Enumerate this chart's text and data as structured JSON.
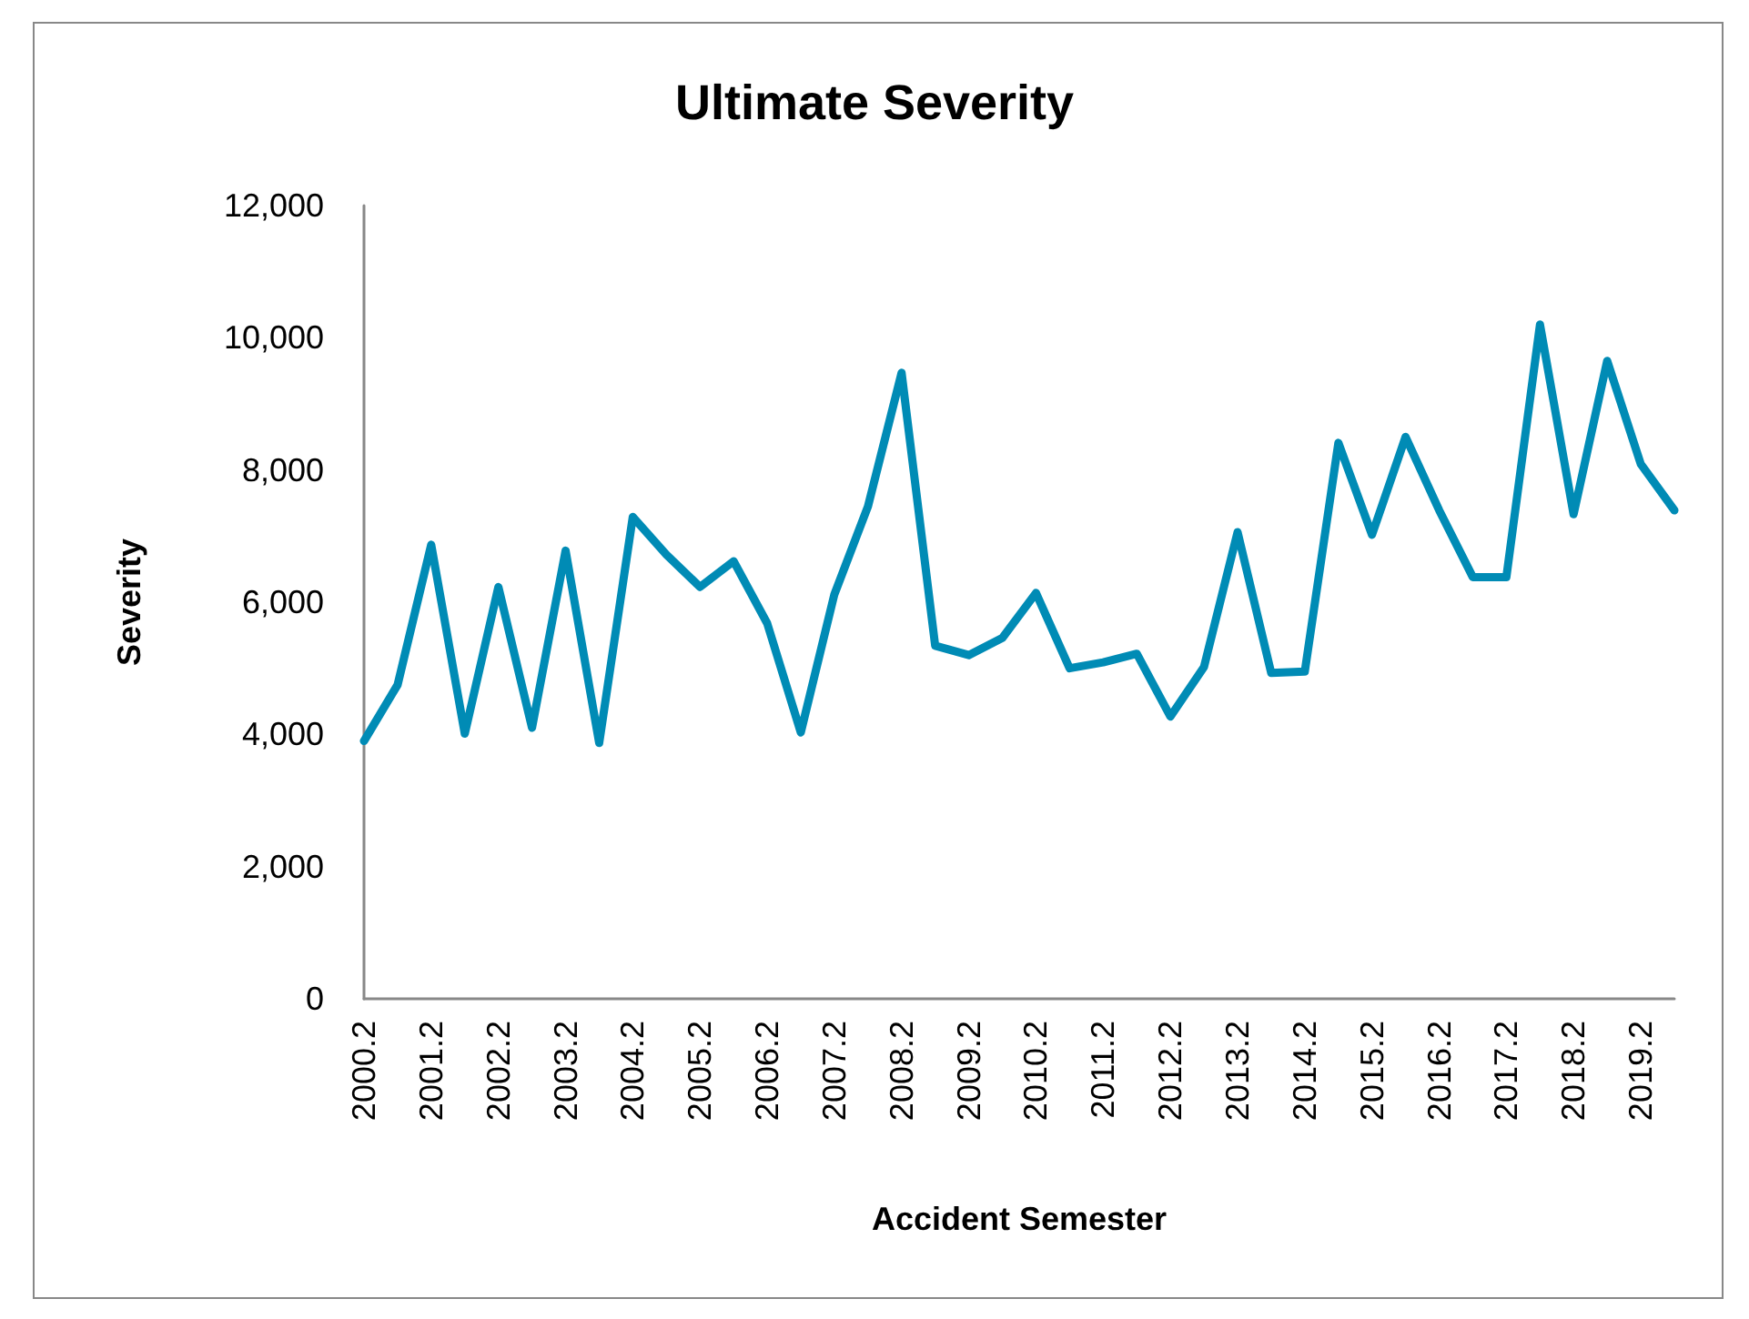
{
  "chart_data": {
    "type": "line",
    "title": "Ultimate Severity",
    "xlabel": "Accident Semester",
    "ylabel": "Severity",
    "categories": [
      "2000.2",
      null,
      "2001.2",
      null,
      "2002.2",
      null,
      "2003.2",
      null,
      "2004.2",
      null,
      "2005.2",
      null,
      "2006.2",
      null,
      "2007.2",
      null,
      "2008.2",
      null,
      "2009.2",
      null,
      "2010.2",
      null,
      "2011.2",
      null,
      "2012.2",
      null,
      "2013.2",
      null,
      "2014.2",
      null,
      "2015.2",
      null,
      "2016.2",
      null,
      "2017.2",
      null,
      "2018.2",
      null,
      "2019.2",
      null
    ],
    "series": [
      {
        "color": "#008bb5",
        "values": [
          3900,
          4750,
          6870,
          4010,
          6230,
          4100,
          6780,
          3870,
          7290,
          6720,
          6230,
          6620,
          5680,
          4030,
          6120,
          7450,
          9470,
          5340,
          5200,
          5460,
          6140,
          5000,
          5090,
          5220,
          4270,
          5020,
          7060,
          4930,
          4950,
          8410,
          7020,
          8500,
          7390,
          6380,
          6380,
          10200,
          7330,
          9650,
          8090,
          7390
        ]
      }
    ],
    "ylim": [
      0,
      12000
    ],
    "yticks": [
      0,
      {
        "value": 2000,
        "label": "2,000"
      },
      {
        "value": 4000,
        "label": "4,000"
      },
      {
        "value": 6000,
        "label": "6,000"
      },
      {
        "value": 8000,
        "label": "8,000"
      },
      {
        "value": 10000,
        "label": "10,000"
      },
      {
        "value": 12000,
        "label": "12,000"
      }
    ],
    "grid": false,
    "marker": "none",
    "line_style": "solid"
  }
}
